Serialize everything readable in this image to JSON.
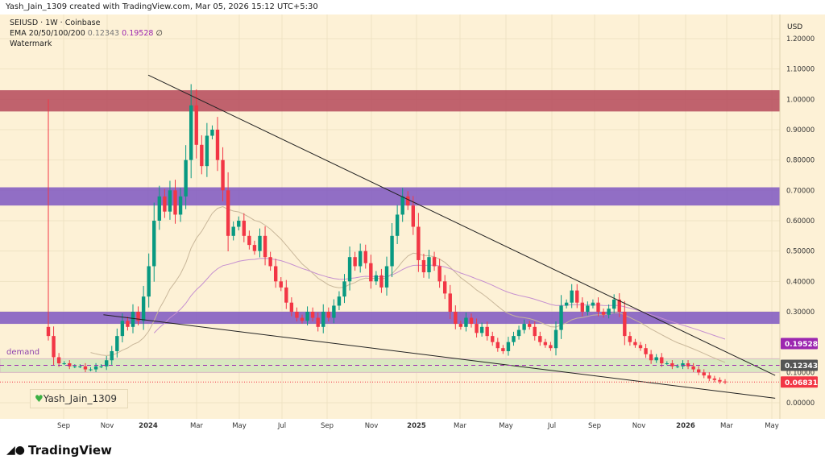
{
  "header": "Yash_Jain_1309 created with TradingView.com, Mar 05, 2026 15:12 UTC+5:30",
  "legend": {
    "symbol": "SEIUSD · 1W · Coinbase",
    "ema_label": "EMA 20/50/100/200",
    "ema_v1": "0.12343",
    "ema_v2": "0.19528",
    "ema_v3": "∅",
    "watermark_label": "Watermark"
  },
  "watermark": "Yash_Jain_1309",
  "brand": "TradingView",
  "colors": {
    "up": "#089981",
    "down": "#f23645",
    "ema20": "#c9b79a",
    "ema50": "#c58fd0",
    "zone_red": "#b5495b",
    "zone_purple": "#7e57c2",
    "zone_green": "#d4e6bd",
    "bg": "#fdf1d6"
  },
  "chart_data": {
    "type": "candlestick",
    "currency": "USD",
    "interval": "1W",
    "ylim": [
      -0.04,
      1.25
    ],
    "y_ticks": [
      "1.20000",
      "1.10000",
      "1.00000",
      "0.90000",
      "0.80000",
      "0.70000",
      "0.60000",
      "0.50000",
      "0.40000",
      "0.30000",
      "0.10000",
      "0.00000"
    ],
    "x_ticks": [
      "Sep",
      "Nov",
      "2024",
      "Mar",
      "May",
      "Jul",
      "Sep",
      "Nov",
      "2025",
      "Mar",
      "May",
      "Jul",
      "Sep",
      "Nov",
      "2026",
      "Mar",
      "May"
    ],
    "first_open": 0.25,
    "first_high": 1.0,
    "closes": [
      0.22,
      0.15,
      0.13,
      0.13,
      0.12,
      0.12,
      0.12,
      0.11,
      0.11,
      0.12,
      0.12,
      0.14,
      0.17,
      0.22,
      0.27,
      0.25,
      0.3,
      0.27,
      0.35,
      0.45,
      0.6,
      0.68,
      0.63,
      0.7,
      0.62,
      0.68,
      0.8,
      0.98,
      0.85,
      0.78,
      0.88,
      0.9,
      0.8,
      0.7,
      0.55,
      0.58,
      0.6,
      0.55,
      0.52,
      0.5,
      0.55,
      0.48,
      0.45,
      0.4,
      0.38,
      0.33,
      0.3,
      0.28,
      0.27,
      0.3,
      0.28,
      0.25,
      0.3,
      0.28,
      0.32,
      0.35,
      0.4,
      0.48,
      0.45,
      0.5,
      0.46,
      0.4,
      0.42,
      0.38,
      0.45,
      0.55,
      0.62,
      0.68,
      0.65,
      0.58,
      0.47,
      0.43,
      0.48,
      0.45,
      0.4,
      0.36,
      0.3,
      0.26,
      0.25,
      0.28,
      0.26,
      0.23,
      0.25,
      0.22,
      0.2,
      0.18,
      0.17,
      0.2,
      0.22,
      0.24,
      0.26,
      0.25,
      0.22,
      0.2,
      0.19,
      0.18,
      0.24,
      0.32,
      0.33,
      0.37,
      0.33,
      0.3,
      0.32,
      0.33,
      0.3,
      0.29,
      0.31,
      0.34,
      0.3,
      0.22,
      0.2,
      0.19,
      0.18,
      0.16,
      0.14,
      0.15,
      0.13,
      0.13,
      0.12,
      0.12,
      0.13,
      0.12,
      0.11,
      0.1,
      0.09,
      0.08,
      0.075,
      0.07,
      0.068
    ],
    "zones": [
      {
        "from": 0.96,
        "to": 1.03,
        "color": "zone_red"
      },
      {
        "from": 0.65,
        "to": 0.71,
        "color": "zone_purple"
      },
      {
        "from": 0.26,
        "to": 0.3,
        "color": "zone_purple"
      },
      {
        "from": 0.1,
        "to": 0.145,
        "color": "zone_green",
        "label": "demand"
      }
    ],
    "trendlines": [
      {
        "from": [
          "2024-01",
          1.08
        ],
        "to": [
          "2026-05",
          0.09
        ]
      },
      {
        "from": [
          "2023-11",
          0.29
        ],
        "to": [
          "2026-05",
          0.015
        ]
      }
    ],
    "price_labels": [
      {
        "value": "0.19528",
        "color": "#9c27b0"
      },
      {
        "value": "0.12343",
        "color": "#555555"
      },
      {
        "value": "0.06831",
        "color": "#f23645"
      }
    ]
  }
}
